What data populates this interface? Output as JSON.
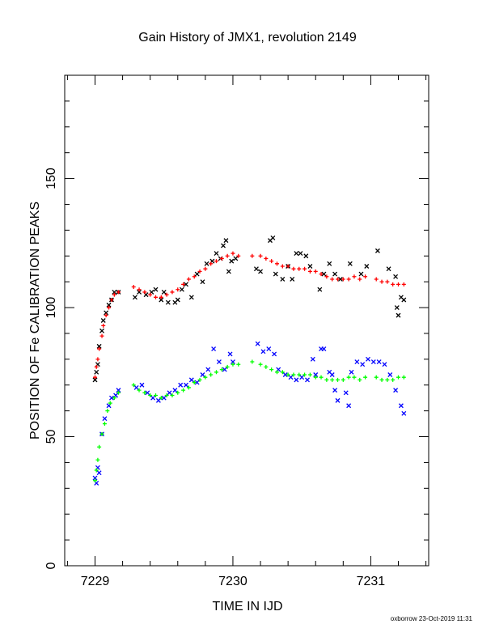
{
  "chart_data": {
    "type": "scatter",
    "title": "Gain History of JMX1, revolution 2149",
    "xlabel": "TIME IN IJD",
    "ylabel": "POSITION OF Fe CALIBRATION PEAKS",
    "xlim": [
      7228.78,
      7231.42
    ],
    "ylim": [
      0,
      190
    ],
    "x_ticks": [
      7229,
      7230,
      7231
    ],
    "y_ticks": [
      0,
      50,
      100,
      150
    ],
    "grid": false,
    "series": [
      {
        "marker": "x",
        "color": "#000000",
        "points": [
          [
            7229.0,
            72
          ],
          [
            7229.01,
            75
          ],
          [
            7229.02,
            78
          ],
          [
            7229.03,
            85
          ],
          [
            7229.05,
            91
          ],
          [
            7229.06,
            95
          ],
          [
            7229.08,
            98
          ],
          [
            7229.1,
            101
          ],
          [
            7229.12,
            103
          ],
          [
            7229.14,
            106
          ],
          [
            7229.17,
            106
          ],
          [
            7229.29,
            104
          ],
          [
            7229.32,
            106
          ],
          [
            7229.37,
            105
          ],
          [
            7229.41,
            106
          ],
          [
            7229.44,
            107
          ],
          [
            7229.48,
            103
          ],
          [
            7229.5,
            106
          ],
          [
            7229.53,
            102
          ],
          [
            7229.58,
            102
          ],
          [
            7229.6,
            103
          ],
          [
            7229.63,
            107
          ],
          [
            7229.66,
            109
          ],
          [
            7229.7,
            104
          ],
          [
            7229.74,
            113
          ],
          [
            7229.78,
            110
          ],
          [
            7229.81,
            117
          ],
          [
            7229.85,
            118
          ],
          [
            7229.88,
            121
          ],
          [
            7229.91,
            119
          ],
          [
            7229.93,
            124
          ],
          [
            7229.95,
            126
          ],
          [
            7229.97,
            114
          ],
          [
            7229.99,
            118
          ],
          [
            7230.02,
            119
          ],
          [
            7230.17,
            115
          ],
          [
            7230.2,
            114
          ],
          [
            7230.27,
            126
          ],
          [
            7230.29,
            127
          ],
          [
            7230.31,
            113
          ],
          [
            7230.36,
            111
          ],
          [
            7230.4,
            116
          ],
          [
            7230.43,
            111
          ],
          [
            7230.46,
            121
          ],
          [
            7230.49,
            121
          ],
          [
            7230.53,
            120
          ],
          [
            7230.56,
            116
          ],
          [
            7230.63,
            107
          ],
          [
            7230.66,
            113
          ],
          [
            7230.7,
            117
          ],
          [
            7230.74,
            113
          ],
          [
            7230.78,
            111
          ],
          [
            7230.85,
            117
          ],
          [
            7230.93,
            113
          ],
          [
            7230.97,
            116
          ],
          [
            7231.05,
            122
          ],
          [
            7231.13,
            115
          ],
          [
            7231.18,
            112
          ],
          [
            7231.19,
            100
          ],
          [
            7231.2,
            97
          ],
          [
            7231.22,
            104
          ],
          [
            7231.24,
            103
          ]
        ]
      },
      {
        "marker": "+",
        "color": "#ff0000",
        "points": [
          [
            7229.0,
            73
          ],
          [
            7229.01,
            77
          ],
          [
            7229.02,
            80
          ],
          [
            7229.03,
            84
          ],
          [
            7229.05,
            89
          ],
          [
            7229.06,
            93
          ],
          [
            7229.08,
            97
          ],
          [
            7229.1,
            100
          ],
          [
            7229.12,
            103
          ],
          [
            7229.14,
            105
          ],
          [
            7229.17,
            106
          ],
          [
            7229.28,
            108
          ],
          [
            7229.32,
            107
          ],
          [
            7229.36,
            106
          ],
          [
            7229.4,
            105
          ],
          [
            7229.44,
            104
          ],
          [
            7229.48,
            104
          ],
          [
            7229.52,
            105
          ],
          [
            7229.56,
            106
          ],
          [
            7229.6,
            107
          ],
          [
            7229.64,
            109
          ],
          [
            7229.68,
            111
          ],
          [
            7229.72,
            112
          ],
          [
            7229.76,
            114
          ],
          [
            7229.8,
            115
          ],
          [
            7229.84,
            117
          ],
          [
            7229.88,
            118
          ],
          [
            7229.92,
            119
          ],
          [
            7229.96,
            120
          ],
          [
            7230.0,
            121
          ],
          [
            7230.04,
            120
          ],
          [
            7230.14,
            120
          ],
          [
            7230.2,
            120
          ],
          [
            7230.24,
            119
          ],
          [
            7230.28,
            118
          ],
          [
            7230.32,
            117
          ],
          [
            7230.36,
            116
          ],
          [
            7230.4,
            116
          ],
          [
            7230.44,
            115
          ],
          [
            7230.48,
            115
          ],
          [
            7230.52,
            115
          ],
          [
            7230.56,
            114
          ],
          [
            7230.6,
            114
          ],
          [
            7230.64,
            113
          ],
          [
            7230.68,
            112
          ],
          [
            7230.72,
            111
          ],
          [
            7230.76,
            111
          ],
          [
            7230.8,
            111
          ],
          [
            7230.84,
            111
          ],
          [
            7230.88,
            112
          ],
          [
            7230.92,
            111
          ],
          [
            7230.96,
            112
          ],
          [
            7231.04,
            111
          ],
          [
            7231.08,
            110
          ],
          [
            7231.12,
            110
          ],
          [
            7231.16,
            109
          ],
          [
            7231.2,
            109
          ],
          [
            7231.24,
            109
          ]
        ]
      },
      {
        "marker": "x",
        "color": "#0000ff",
        "points": [
          [
            7229.0,
            34
          ],
          [
            7229.01,
            32
          ],
          [
            7229.02,
            38
          ],
          [
            7229.03,
            36
          ],
          [
            7229.05,
            51
          ],
          [
            7229.07,
            57
          ],
          [
            7229.1,
            62
          ],
          [
            7229.12,
            65
          ],
          [
            7229.15,
            66
          ],
          [
            7229.17,
            68
          ],
          [
            7229.3,
            69
          ],
          [
            7229.34,
            70
          ],
          [
            7229.38,
            67
          ],
          [
            7229.42,
            65
          ],
          [
            7229.46,
            64
          ],
          [
            7229.5,
            65
          ],
          [
            7229.54,
            67
          ],
          [
            7229.58,
            68
          ],
          [
            7229.62,
            70
          ],
          [
            7229.66,
            70
          ],
          [
            7229.7,
            72
          ],
          [
            7229.74,
            71
          ],
          [
            7229.78,
            74
          ],
          [
            7229.82,
            76
          ],
          [
            7229.86,
            84
          ],
          [
            7229.9,
            79
          ],
          [
            7229.94,
            76
          ],
          [
            7229.98,
            82
          ],
          [
            7230.0,
            79
          ],
          [
            7230.18,
            86
          ],
          [
            7230.22,
            83
          ],
          [
            7230.26,
            84
          ],
          [
            7230.3,
            82
          ],
          [
            7230.33,
            76
          ],
          [
            7230.38,
            74
          ],
          [
            7230.42,
            73
          ],
          [
            7230.46,
            72
          ],
          [
            7230.5,
            73
          ],
          [
            7230.54,
            72
          ],
          [
            7230.58,
            80
          ],
          [
            7230.6,
            74
          ],
          [
            7230.64,
            84
          ],
          [
            7230.66,
            84
          ],
          [
            7230.7,
            75
          ],
          [
            7230.72,
            74
          ],
          [
            7230.74,
            68
          ],
          [
            7230.76,
            64
          ],
          [
            7230.82,
            67
          ],
          [
            7230.84,
            62
          ],
          [
            7230.86,
            75
          ],
          [
            7230.9,
            79
          ],
          [
            7230.94,
            78
          ],
          [
            7230.98,
            80
          ],
          [
            7231.02,
            79
          ],
          [
            7231.06,
            79
          ],
          [
            7231.1,
            78
          ],
          [
            7231.14,
            74
          ],
          [
            7231.18,
            68
          ],
          [
            7231.22,
            62
          ],
          [
            7231.24,
            59
          ]
        ]
      },
      {
        "marker": "+",
        "color": "#00ff00",
        "points": [
          [
            7229.0,
            33
          ],
          [
            7229.01,
            37
          ],
          [
            7229.02,
            41
          ],
          [
            7229.03,
            46
          ],
          [
            7229.05,
            51
          ],
          [
            7229.07,
            55
          ],
          [
            7229.09,
            60
          ],
          [
            7229.11,
            63
          ],
          [
            7229.14,
            65
          ],
          [
            7229.17,
            67
          ],
          [
            7229.28,
            70
          ],
          [
            7229.32,
            68
          ],
          [
            7229.36,
            67
          ],
          [
            7229.4,
            66
          ],
          [
            7229.44,
            66
          ],
          [
            7229.48,
            65
          ],
          [
            7229.52,
            66
          ],
          [
            7229.56,
            66
          ],
          [
            7229.6,
            67
          ],
          [
            7229.64,
            68
          ],
          [
            7229.68,
            69
          ],
          [
            7229.72,
            71
          ],
          [
            7229.76,
            72
          ],
          [
            7229.8,
            73
          ],
          [
            7229.84,
            74
          ],
          [
            7229.88,
            75
          ],
          [
            7229.92,
            76
          ],
          [
            7229.96,
            77
          ],
          [
            7230.0,
            78
          ],
          [
            7230.04,
            78
          ],
          [
            7230.14,
            79
          ],
          [
            7230.2,
            78
          ],
          [
            7230.24,
            77
          ],
          [
            7230.28,
            76
          ],
          [
            7230.32,
            75
          ],
          [
            7230.36,
            75
          ],
          [
            7230.4,
            74
          ],
          [
            7230.44,
            74
          ],
          [
            7230.48,
            74
          ],
          [
            7230.52,
            74
          ],
          [
            7230.56,
            74
          ],
          [
            7230.6,
            73
          ],
          [
            7230.64,
            73
          ],
          [
            7230.68,
            72
          ],
          [
            7230.72,
            72
          ],
          [
            7230.76,
            72
          ],
          [
            7230.8,
            72
          ],
          [
            7230.84,
            73
          ],
          [
            7230.88,
            73
          ],
          [
            7230.92,
            72
          ],
          [
            7230.96,
            73
          ],
          [
            7231.04,
            73
          ],
          [
            7231.08,
            72
          ],
          [
            7231.12,
            72
          ],
          [
            7231.16,
            72
          ],
          [
            7231.2,
            73
          ],
          [
            7231.24,
            73
          ]
        ]
      }
    ]
  },
  "footer": "oxborrow 23-Oct-2019 11:31"
}
